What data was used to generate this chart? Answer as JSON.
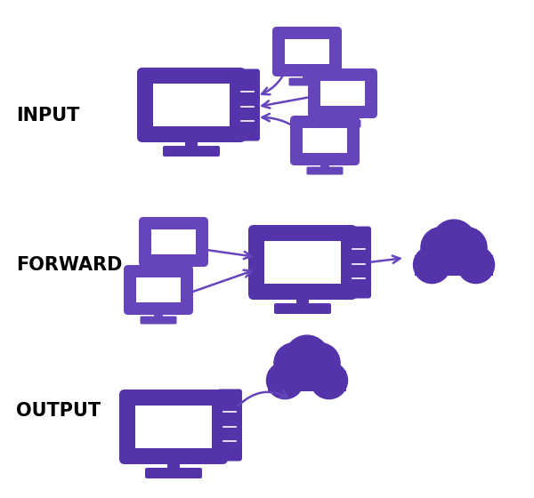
{
  "bg_color": "#ffffff",
  "purple_dark": "#5533aa",
  "purple_mid": "#6644bb",
  "purple_cloud_dark": "#5533aa",
  "purple_cloud_light": "#7766cc",
  "labels": {
    "input": "INPUT",
    "forward": "FORWARD",
    "output": "OUTPUT"
  },
  "label_fontsize": 15,
  "label_fontweight": "bold",
  "figsize": [
    6.0,
    5.6
  ],
  "dpi": 100
}
